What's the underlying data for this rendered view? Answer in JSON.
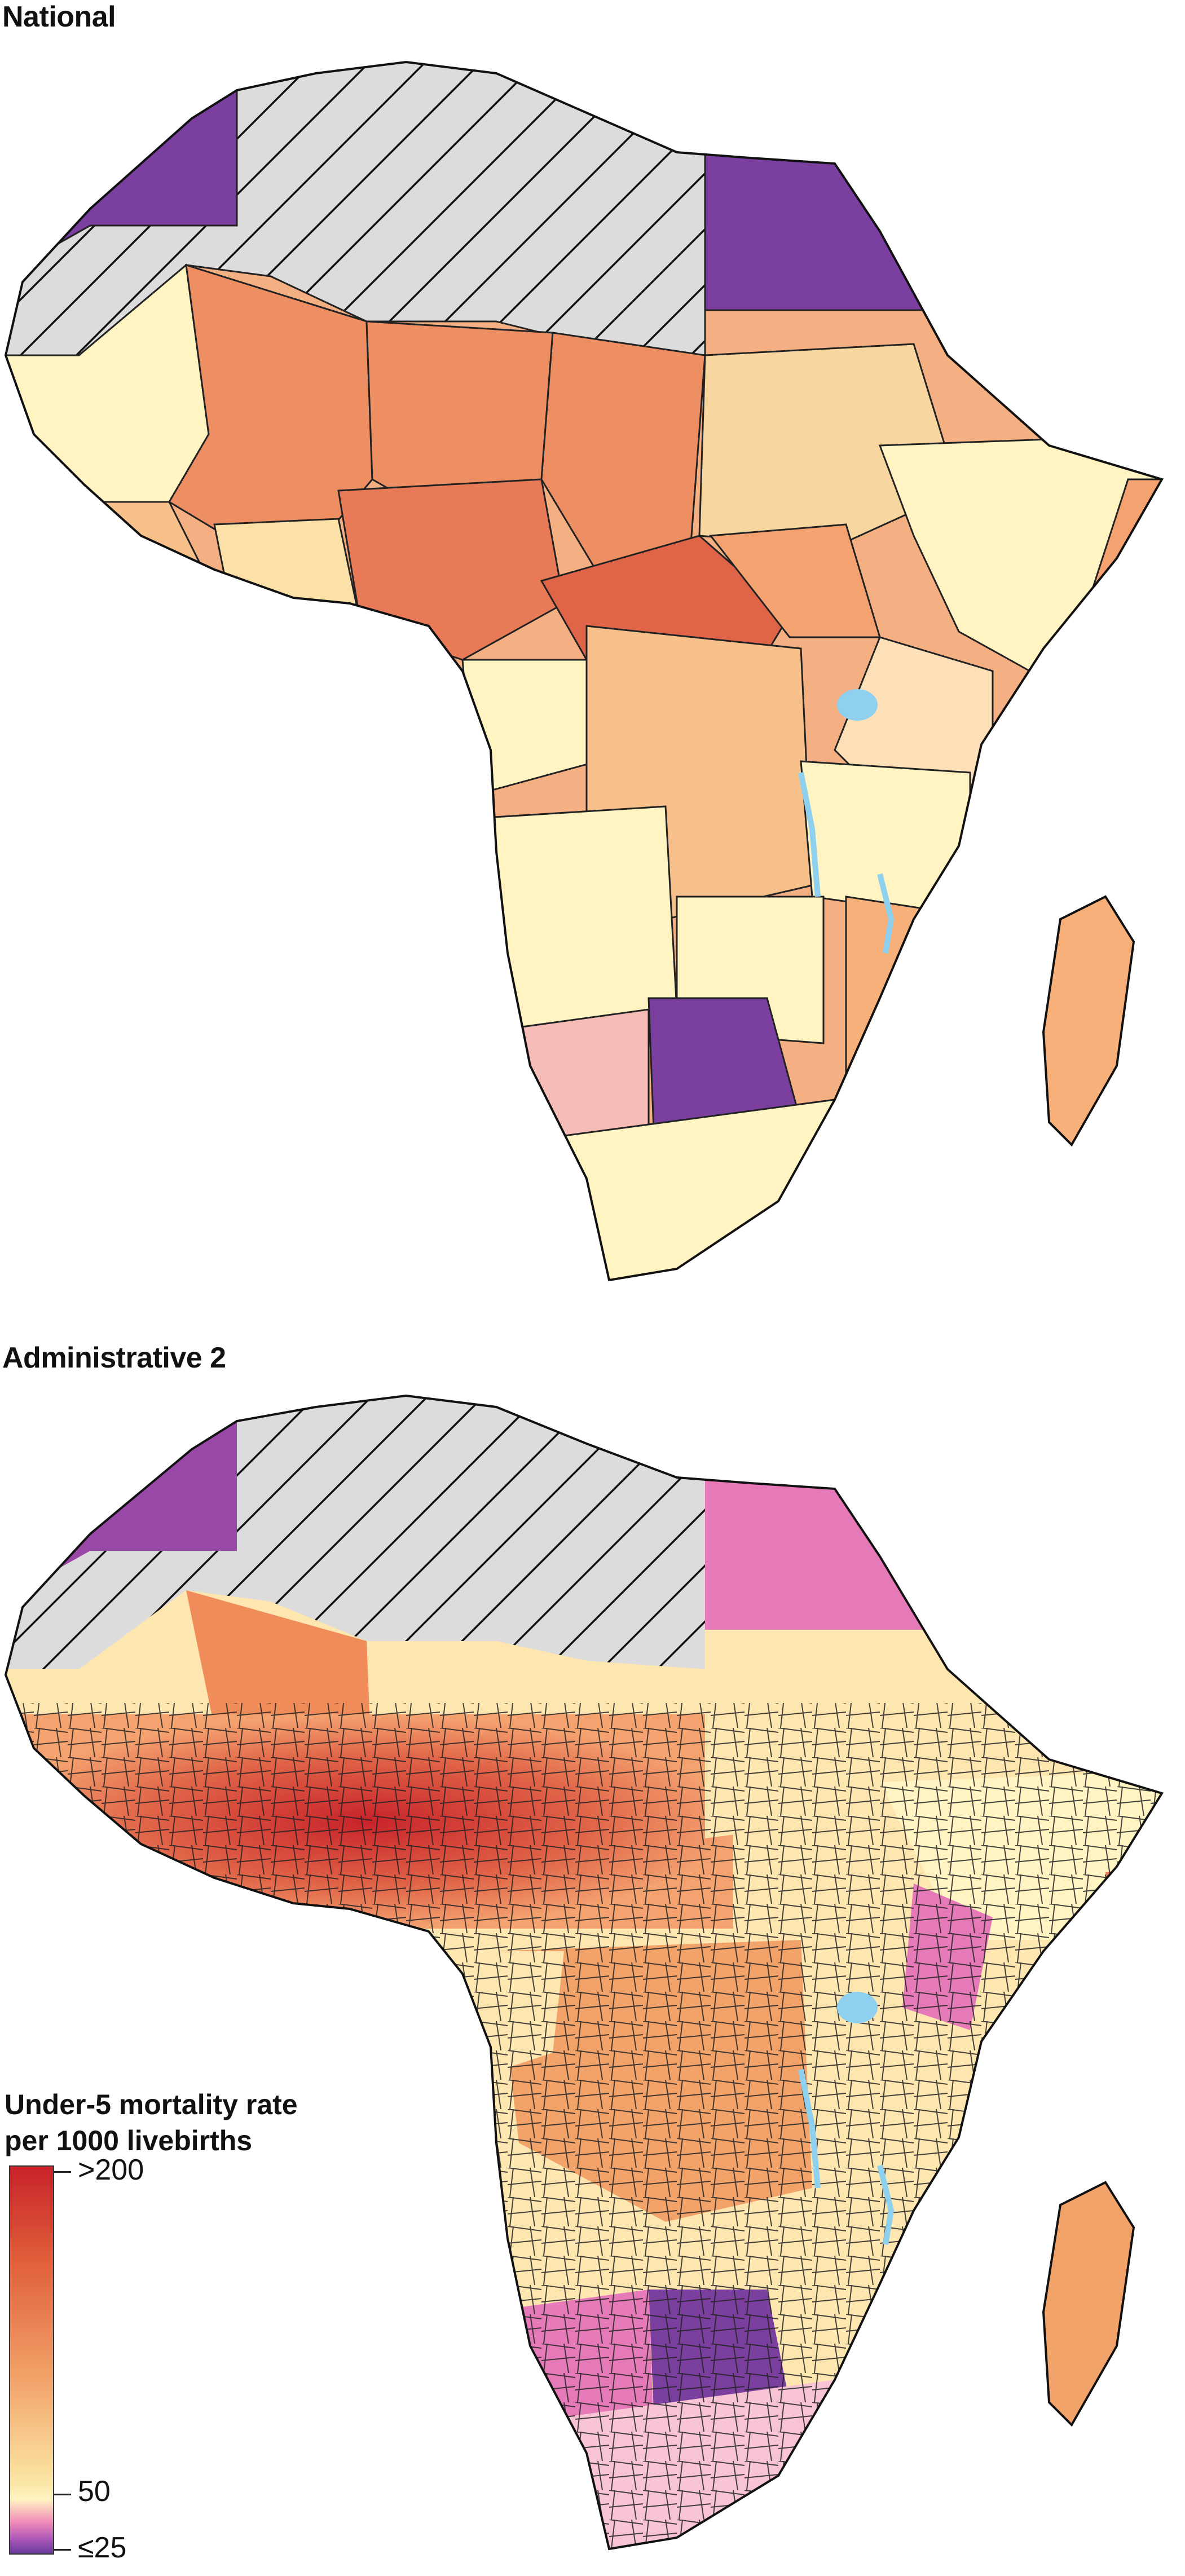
{
  "panels": [
    {
      "title": "National"
    },
    {
      "title": "Administrative 2"
    }
  ],
  "legend": {
    "title_line1": "Under-5 mortality rate",
    "title_line2": "per 1000 livebirths",
    "ticks": [
      ">200",
      "50",
      "≤25"
    ],
    "colors": {
      "high": "#c8232a",
      "mid_high": "#e0603a",
      "mid": "#f2a36a",
      "low": "#fff4c2",
      "very_low": "#f08ab8",
      "lowest": "#6a3aa0",
      "no_data": "#dcdcdc",
      "water": "#8fd0ef"
    }
  }
}
